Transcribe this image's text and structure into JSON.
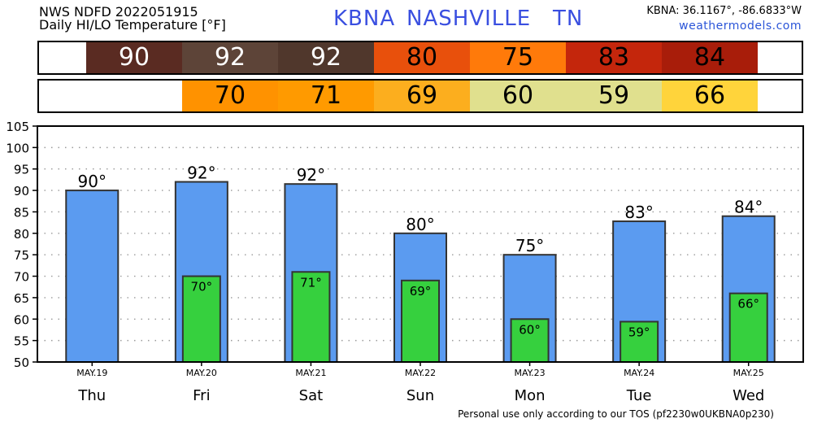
{
  "header": {
    "line1": "NWS NDFD 2022051915",
    "line2": "Daily HI/LO Temperature [°F]",
    "station": "KBNA",
    "city": "NASHVILLE",
    "state": "TN",
    "coords": "KBNA: 36.1167°, -86.6833°W",
    "site": "weathermodels.com"
  },
  "footer": "Personal use only according to our TOS (pf2230w0UKBNA0p230)",
  "hi_row": [
    {
      "value": "90",
      "color": "#5a2b22"
    },
    {
      "value": "92",
      "color": "#5d4438"
    },
    {
      "value": "92",
      "color": "#50372c"
    },
    {
      "value": "80",
      "color": "#e8500c"
    },
    {
      "value": "75",
      "color": "#ff7a0a"
    },
    {
      "value": "83",
      "color": "#c4260c"
    },
    {
      "value": "84",
      "color": "#a81d0a"
    }
  ],
  "lo_row": [
    {
      "value": "",
      "color": "#ffffff"
    },
    {
      "value": "70",
      "color": "#ff9200"
    },
    {
      "value": "71",
      "color": "#ff9a00"
    },
    {
      "value": "69",
      "color": "#fcae1e"
    },
    {
      "value": "60",
      "color": "#e0e08e"
    },
    {
      "value": "59",
      "color": "#e0e08e"
    },
    {
      "value": "66",
      "color": "#ffd43b"
    }
  ],
  "chart_data": {
    "type": "bar",
    "title": "Daily HI/LO Temperature [°F]",
    "categories": [
      "MAY.19",
      "MAY.20",
      "MAY.21",
      "MAY.22",
      "MAY.23",
      "MAY.24",
      "MAY.25"
    ],
    "days": [
      "Thu",
      "Fri",
      "Sat",
      "Sun",
      "Mon",
      "Tue",
      "Wed"
    ],
    "series": [
      {
        "name": "HI",
        "values": [
          90,
          92,
          91.5,
          80,
          75,
          82.8,
          84
        ],
        "labels": [
          "90°",
          "92°",
          "92°",
          "80°",
          "75°",
          "83°",
          "84°"
        ],
        "color": "#5b9bf0"
      },
      {
        "name": "LO",
        "values": [
          null,
          70,
          71,
          69,
          60,
          59.4,
          66
        ],
        "labels": [
          "",
          "70°",
          "71°",
          "69°",
          "60°",
          "59°",
          "66°"
        ],
        "color": "#36d03e"
      }
    ],
    "yticks": [
      50,
      55,
      60,
      65,
      70,
      75,
      80,
      85,
      90,
      95,
      100,
      105
    ],
    "ylim": [
      50,
      105
    ],
    "grid": true
  }
}
